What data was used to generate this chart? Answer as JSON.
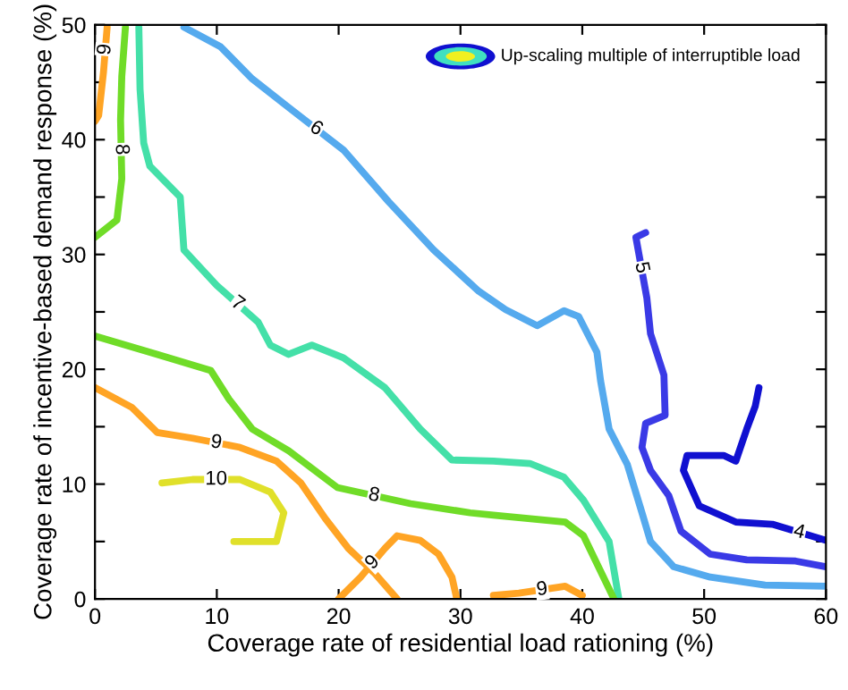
{
  "chart_data": {
    "type": "line",
    "xlabel": "Coverage rate of residential load rationing (%)",
    "ylabel": "Coverage rate of incentive-based demand response (%)",
    "annotations": [
      "Up-scaling multiple of interruptible load"
    ],
    "xlim": [
      0,
      60
    ],
    "xticks": [
      0,
      10,
      20,
      30,
      40,
      50,
      60
    ],
    "ylim": [
      0,
      50
    ],
    "yticks": [
      0,
      {
        "value": 5,
        "label": null
      },
      10,
      {
        "value": 15,
        "label": null
      },
      20,
      {
        "value": 25,
        "label": null
      },
      30,
      {
        "value": 35,
        "label": null
      },
      40,
      {
        "value": 45,
        "label": null
      },
      50
    ],
    "grid": false,
    "legend": false,
    "marker": "none",
    "line_style": "solid",
    "series": [
      {
        "name": "4",
        "color": "#1010d0",
        "x": [
          54.5,
          54.2,
          53.5,
          52.6,
          51.6,
          48.6,
          48.3,
          49.6,
          52.6,
          55.6,
          60
        ],
        "values": [
          18.4,
          16.8,
          14.8,
          12.0,
          12.5,
          12.5,
          11.2,
          8.1,
          6.7,
          6.5,
          5.1
        ]
      },
      {
        "name": "5",
        "color": "#3a3ae6",
        "x": [
          45.2,
          44.4,
          45.3,
          45.6,
          46.7,
          46.8,
          45.2,
          44.9,
          45.6,
          47.1,
          48.1,
          50.5,
          53.5,
          57.5,
          60
        ],
        "values": [
          31.9,
          31.5,
          26.2,
          23.1,
          19.5,
          16.0,
          15.3,
          13.2,
          11.2,
          9.0,
          5.9,
          3.9,
          3.4,
          3.3,
          2.8
        ]
      },
      {
        "name": "6",
        "color": "#55aaee",
        "x": [
          7.3,
          10.3,
          12.9,
          15.9,
          20.4,
          24.1,
          27.8,
          31.5,
          33.7,
          36.3,
          38.5,
          39.7,
          41.2,
          41.5,
          42.2,
          43.7,
          44.9,
          45.6,
          47.5,
          50.5,
          55.0,
          60
        ],
        "values": [
          49.8,
          48.1,
          45.3,
          42.8,
          39.1,
          34.6,
          30.4,
          26.8,
          25.2,
          23.8,
          25.1,
          24.6,
          21.5,
          19.0,
          14.8,
          11.7,
          7.5,
          5.0,
          2.8,
          1.9,
          1.2,
          1.1
        ]
      },
      {
        "name": "7",
        "color": "#44e0a8",
        "x": [
          3.6,
          3.7,
          4.0,
          4.5,
          7.0,
          7.3,
          10.0,
          13.4,
          14.4,
          15.9,
          17.8,
          20.4,
          23.8,
          26.7,
          29.3,
          32.7,
          35.7,
          38.5,
          40.1,
          42.2,
          43.0
        ],
        "values": [
          49.8,
          44.4,
          39.7,
          37.7,
          35.0,
          30.4,
          27.3,
          24.1,
          22.1,
          21.3,
          22.1,
          21.0,
          18.4,
          14.8,
          12.1,
          12.0,
          11.8,
          10.6,
          8.6,
          5.0,
          0
        ]
      },
      {
        "name": "8",
        "color": "#70dc28",
        "x": [
          2.5,
          2.2,
          2.1,
          2.2,
          1.8,
          0,
          null,
          0,
          5.1,
          9.5,
          11.0,
          12.9,
          15.9,
          19.9,
          25.9,
          30.8,
          32.7,
          38.6,
          40.1,
          42.6
        ],
        "values": [
          49.8,
          45.5,
          41.7,
          36.6,
          33.0,
          31.5,
          null,
          22.9,
          21.3,
          19.9,
          17.4,
          14.8,
          12.9,
          9.7,
          8.3,
          7.5,
          7.3,
          6.7,
          5.5,
          0
        ]
      },
      {
        "name": "9",
        "color": "#ffa424",
        "x": [
          1.0,
          0.7,
          0.3,
          0,
          null,
          0,
          3.0,
          5.1,
          8.0,
          11.9,
          14.9,
          16.9,
          18.9,
          20.8,
          22.9,
          24.8,
          null,
          20.0,
          21.8,
          23.8,
          24.8,
          26.7,
          28.2,
          29.3,
          29.7,
          null,
          32.7,
          34.8,
          38.6,
          40
        ],
        "values": [
          49.8,
          45.9,
          42.1,
          41.6,
          null,
          18.4,
          16.7,
          14.5,
          14.0,
          13.2,
          12.0,
          10.1,
          7.0,
          4.4,
          2.3,
          0,
          null,
          0,
          1.9,
          4.4,
          5.5,
          5.1,
          3.9,
          1.9,
          0,
          null,
          0.3,
          0.5,
          1.1,
          0.3
        ]
      },
      {
        "name": "10",
        "color": "#e0e02a",
        "x": [
          5.5,
          8.0,
          11.9,
          14.4,
          15.5,
          14.9,
          11.4
        ],
        "values": [
          10.1,
          10.4,
          10.4,
          9.3,
          7.5,
          5.0,
          5.0
        ]
      }
    ]
  }
}
